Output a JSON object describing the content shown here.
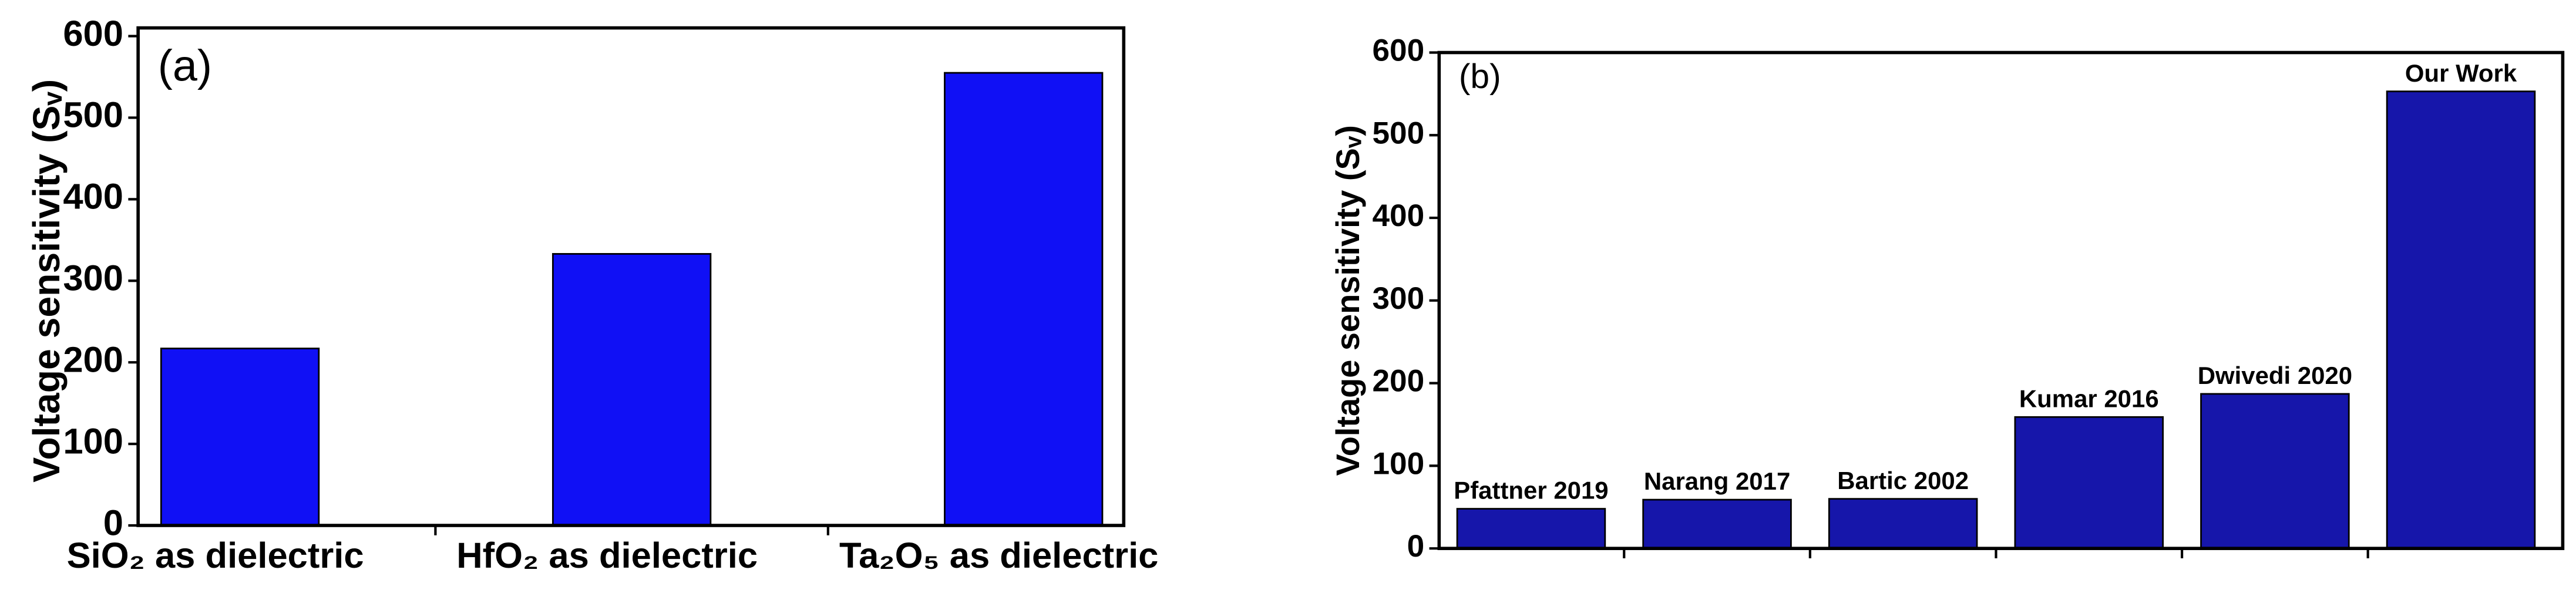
{
  "chart_data": [
    {
      "type": "bar",
      "annotation": "(a)",
      "ylabel": "Voltage sensitivity (Sᵥ)",
      "categories": [
        "SiO₂ as dielectric",
        "HfO₂ as dielectric",
        "Ta₂O₅ as dielectric"
      ],
      "values": [
        217,
        333,
        555
      ],
      "color": "#1010f5",
      "ylim": [
        0,
        600
      ],
      "yticks": [
        0,
        100,
        200,
        300,
        400,
        500,
        600
      ]
    },
    {
      "type": "bar",
      "annotation": "(b)",
      "ylabel": "Voltage sensitivity (Sᵥ)",
      "categories": [
        "Pfattner 2019",
        "Narang 2017",
        "Bartic 2002",
        "Kumar 2016",
        "Dwivedi 2020",
        "Our Work"
      ],
      "values": [
        48,
        59,
        60,
        159,
        187,
        553
      ],
      "color": "#1616aa",
      "ylim": [
        0,
        600
      ],
      "yticks": [
        0,
        100,
        200,
        300,
        400,
        500,
        600
      ]
    }
  ]
}
